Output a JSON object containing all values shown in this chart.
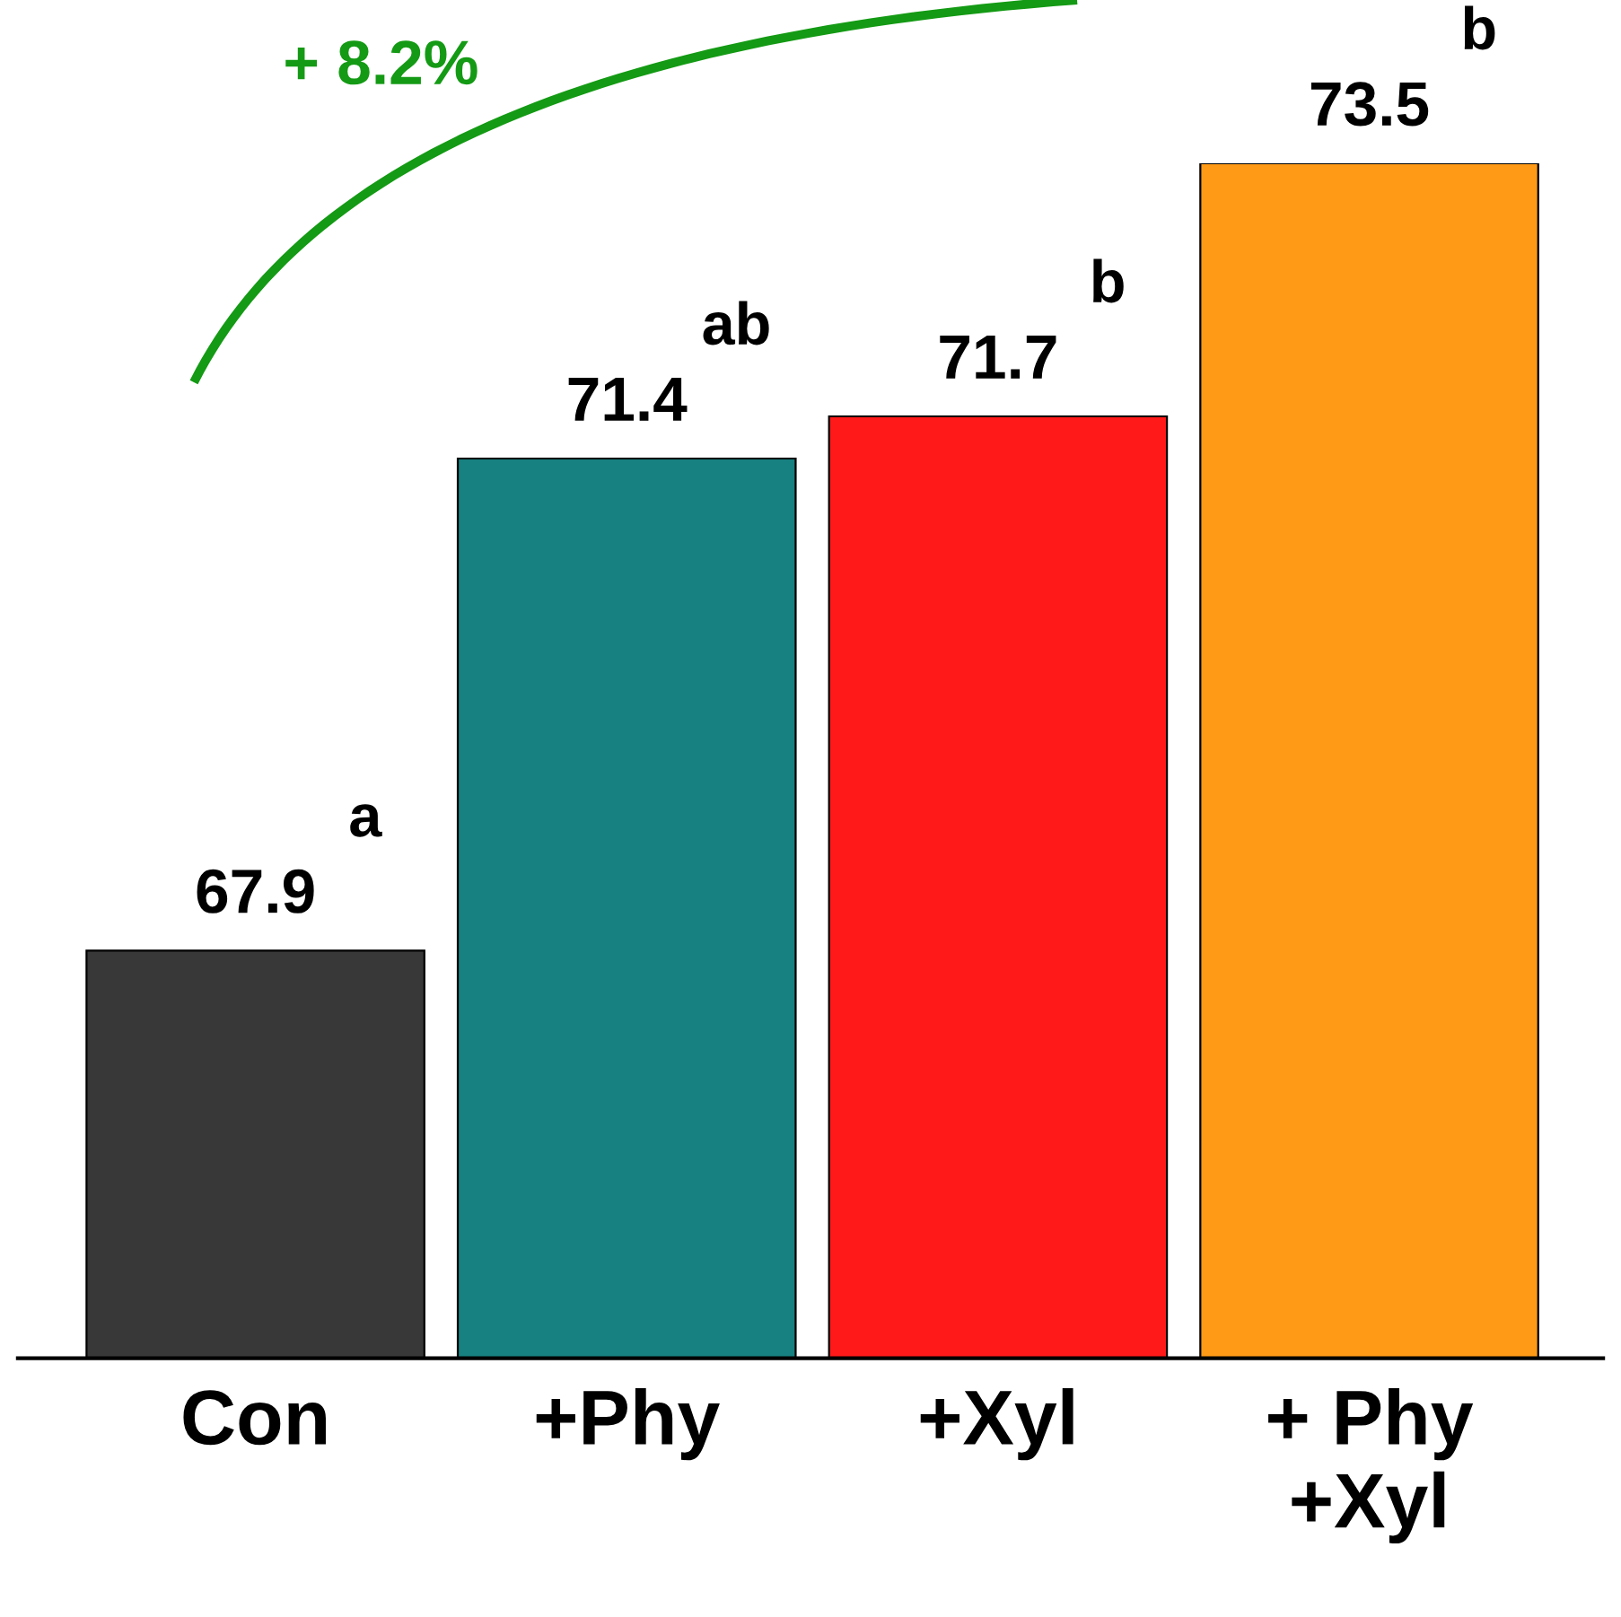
{
  "chart_data": {
    "type": "bar",
    "categories": [
      "Con",
      "+Phy",
      "+Xyl",
      "+ Phy\n+Xyl"
    ],
    "values": [
      67.9,
      71.4,
      71.7,
      73.5
    ],
    "colors": [
      "#383838",
      "#178080",
      "#ff1919",
      "#ff9a17"
    ],
    "ylim": [
      65,
      73.5
    ],
    "data_labels": true,
    "grid": false,
    "legend": false,
    "annotations": [
      "a",
      "ab",
      "b",
      "b",
      "+ 8.2%"
    ]
  }
}
